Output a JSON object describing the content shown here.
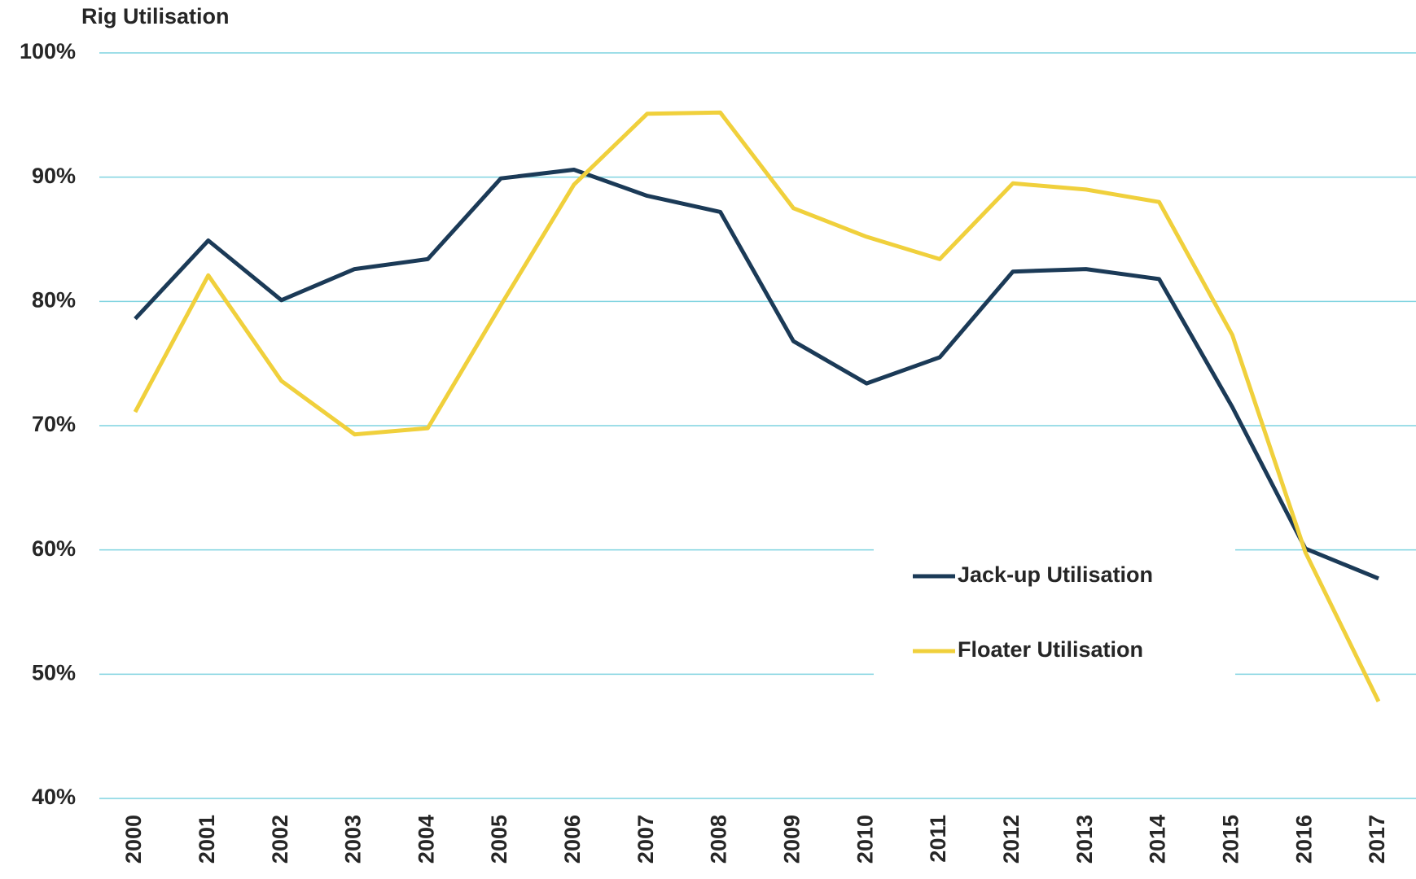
{
  "chart_data": {
    "type": "line",
    "title": "Rig Utilisation",
    "categories": [
      "2000",
      "2001",
      "2002",
      "2003",
      "2004",
      "2005",
      "2006",
      "2007",
      "2008",
      "2009",
      "2010",
      "2011",
      "2012",
      "2013",
      "2014",
      "2015",
      "2016",
      "2017"
    ],
    "series": [
      {
        "name": "Jack-up Utilisation",
        "color": "#1b3a57",
        "values": [
          78.6,
          84.9,
          80.1,
          82.6,
          83.4,
          89.9,
          90.6,
          88.5,
          87.2,
          76.8,
          73.4,
          75.5,
          82.4,
          82.6,
          81.8,
          71.5,
          60.1,
          57.7
        ]
      },
      {
        "name": "Floater Utilisation",
        "color": "#f0d03c",
        "values": [
          71.1,
          82.1,
          73.6,
          69.3,
          69.8,
          79.7,
          89.4,
          95.1,
          95.2,
          87.5,
          85.2,
          83.4,
          89.5,
          89.0,
          88.0,
          77.3,
          59.8,
          47.8
        ]
      }
    ],
    "ylim": [
      40,
      100
    ],
    "yticks": [
      {
        "value": 40,
        "label": "40%"
      },
      {
        "value": 50,
        "label": "50%"
      },
      {
        "value": 60,
        "label": "60%"
      },
      {
        "value": 70,
        "label": "70%"
      },
      {
        "value": 80,
        "label": "80%"
      },
      {
        "value": 90,
        "label": "90%"
      },
      {
        "value": 100,
        "label": "100%"
      }
    ],
    "grid": true,
    "legend": "lower right"
  }
}
